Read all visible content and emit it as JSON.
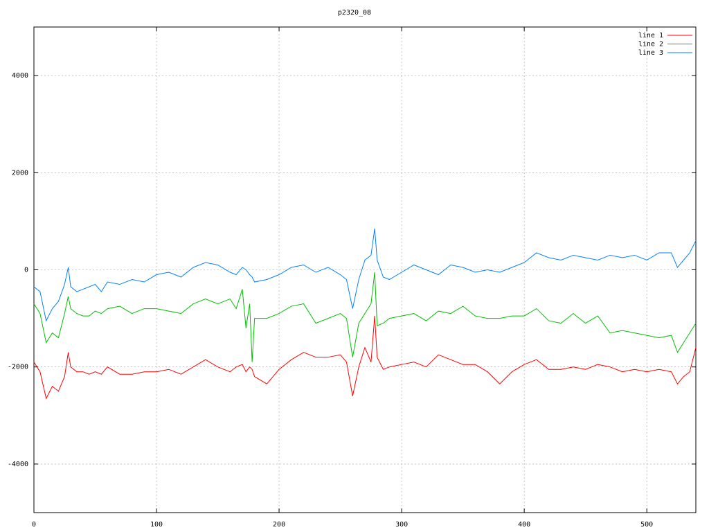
{
  "chart_data": {
    "type": "line",
    "title": "p2320_08",
    "x": [
      0,
      5,
      10,
      15,
      20,
      25,
      28,
      30,
      35,
      40,
      45,
      50,
      55,
      60,
      70,
      80,
      90,
      100,
      110,
      120,
      130,
      140,
      150,
      160,
      165,
      170,
      173,
      176,
      178,
      180,
      190,
      200,
      210,
      220,
      230,
      240,
      250,
      255,
      260,
      265,
      270,
      275,
      278,
      280,
      285,
      290,
      300,
      310,
      320,
      330,
      340,
      350,
      360,
      370,
      380,
      390,
      400,
      410,
      420,
      430,
      440,
      450,
      460,
      470,
      480,
      490,
      500,
      510,
      520,
      525,
      530,
      535,
      540
    ],
    "series": [
      {
        "name": "line 1",
        "color": "#ff0000",
        "values": [
          -1900,
          -2100,
          -2650,
          -2400,
          -2500,
          -2200,
          -1700,
          -2000,
          -2100,
          -2100,
          -2150,
          -2100,
          -2150,
          -2000,
          -2150,
          -2150,
          -2100,
          -2100,
          -2050,
          -2150,
          -2000,
          -1850,
          -2000,
          -2100,
          -2000,
          -1950,
          -2100,
          -2000,
          -2050,
          -2200,
          -2350,
          -2050,
          -1850,
          -1700,
          -1800,
          -1800,
          -1750,
          -1900,
          -2600,
          -2000,
          -1600,
          -1900,
          -950,
          -1800,
          -2050,
          -2000,
          -1950,
          -1900,
          -2000,
          -1750,
          -1850,
          -1950,
          -1950,
          -2100,
          -2350,
          -2100,
          -1950,
          -1850,
          -2050,
          -2050,
          -2000,
          -2050,
          -1950,
          -2000,
          -2100,
          -2050,
          -2100,
          -2050,
          -2100,
          -2350,
          -2200,
          -2100,
          -1600
        ]
      },
      {
        "name": "line 2",
        "color": "#00c000",
        "values": [
          -700,
          -900,
          -1500,
          -1300,
          -1400,
          -900,
          -550,
          -800,
          -900,
          -950,
          -950,
          -850,
          -900,
          -800,
          -750,
          -900,
          -800,
          -800,
          -850,
          -900,
          -700,
          -600,
          -700,
          -600,
          -800,
          -400,
          -1200,
          -700,
          -1900,
          -1000,
          -1000,
          -900,
          -750,
          -700,
          -1100,
          -1000,
          -900,
          -1000,
          -1800,
          -1100,
          -900,
          -700,
          -50,
          -1150,
          -1100,
          -1000,
          -950,
          -900,
          -1050,
          -850,
          -900,
          -750,
          -950,
          -1000,
          -1000,
          -950,
          -950,
          -800,
          -1050,
          -1100,
          -900,
          -1100,
          -950,
          -1300,
          -1250,
          -1300,
          -1350,
          -1400,
          -1350,
          -1700,
          -1500,
          -1300,
          -1100
        ]
      },
      {
        "name": "line 3",
        "color": "#0080ff",
        "values": [
          -350,
          -450,
          -1050,
          -800,
          -650,
          -300,
          50,
          -350,
          -450,
          -400,
          -350,
          -300,
          -450,
          -250,
          -300,
          -200,
          -250,
          -100,
          -50,
          -150,
          50,
          150,
          100,
          -50,
          -100,
          50,
          0,
          -100,
          -150,
          -250,
          -200,
          -100,
          50,
          100,
          -50,
          50,
          -100,
          -200,
          -800,
          -200,
          200,
          300,
          850,
          200,
          -150,
          -200,
          -50,
          100,
          0,
          -100,
          100,
          50,
          -50,
          0,
          -50,
          50,
          150,
          350,
          250,
          200,
          300,
          250,
          200,
          300,
          250,
          300,
          200,
          350,
          350,
          50,
          200,
          350,
          600
        ]
      }
    ],
    "xlim": [
      0,
      540
    ],
    "xticks": [
      0,
      100,
      200,
      300,
      400,
      500
    ],
    "ylim": [
      -5000,
      5000
    ],
    "yticks": [
      -4000,
      -2000,
      0,
      2000,
      4000
    ],
    "grid": true,
    "legend": "top-right"
  }
}
